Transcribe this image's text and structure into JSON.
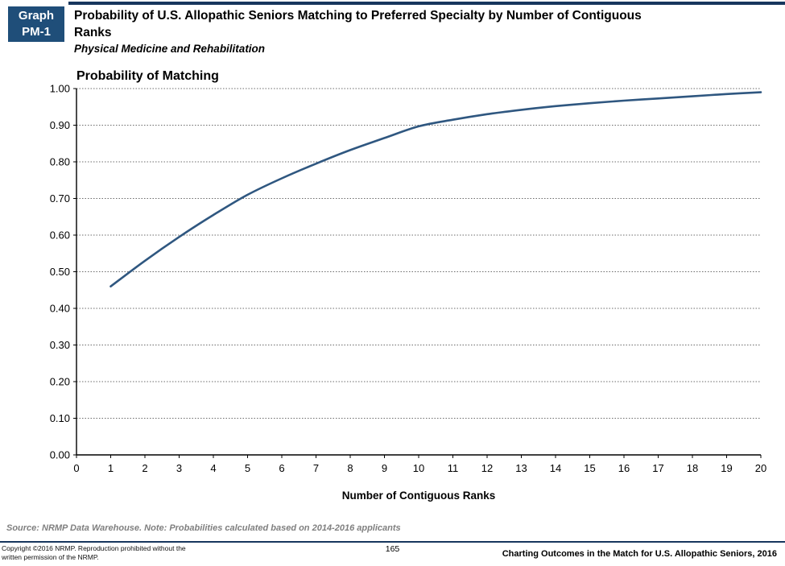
{
  "page": {
    "badge": {
      "line1": "Graph",
      "line2": "PM-1"
    },
    "title": "Probability of U.S. Allopathic Seniors Matching to Preferred Specialty by Number of Contiguous Ranks",
    "subtitle": "Physical Medicine and Rehabilitation",
    "source_note": "Source: NRMP Data Warehouse. Note: Probabilities calculated based on 2014-2016 applicants",
    "footer": {
      "copyright_line1": "Copyright ©2016 NRMP. Reproduction prohibited without the",
      "copyright_line2": "written permission of the NRMP.",
      "page_number": "165",
      "publication": "Charting Outcomes in the Match for U.S. Allopathic Seniors, 2016"
    }
  },
  "chart_data": {
    "type": "line",
    "title": "Probability of Matching",
    "xlabel": "Number of Contiguous Ranks",
    "ylabel": "Probability of Matching",
    "x": [
      1,
      2,
      3,
      4,
      5,
      6,
      7,
      8,
      9,
      10,
      11,
      12,
      13,
      14,
      15,
      16,
      17,
      18,
      19,
      20
    ],
    "series": [
      {
        "name": "Physical Medicine and Rehabilitation",
        "values": [
          0.46,
          0.53,
          0.595,
          0.655,
          0.71,
          0.755,
          0.795,
          0.832,
          0.865,
          0.897,
          0.915,
          0.93,
          0.942,
          0.952,
          0.96,
          0.967,
          0.973,
          0.979,
          0.985,
          0.99
        ]
      }
    ],
    "xlim": [
      0,
      20
    ],
    "ylim": [
      0.0,
      1.0
    ],
    "x_ticks": [
      "0",
      "1",
      "2",
      "3",
      "4",
      "5",
      "6",
      "7",
      "8",
      "9",
      "10",
      "11",
      "12",
      "13",
      "14",
      "15",
      "16",
      "17",
      "18",
      "19",
      "20"
    ],
    "y_ticks": [
      "0.00",
      "0.10",
      "0.20",
      "0.30",
      "0.40",
      "0.50",
      "0.60",
      "0.70",
      "0.80",
      "0.90",
      "1.00"
    ],
    "grid": "horizontal-dotted",
    "legend": "none",
    "line_color": "#2F5780",
    "axis_color": "#000000",
    "grid_color": "#6b6b6b"
  }
}
